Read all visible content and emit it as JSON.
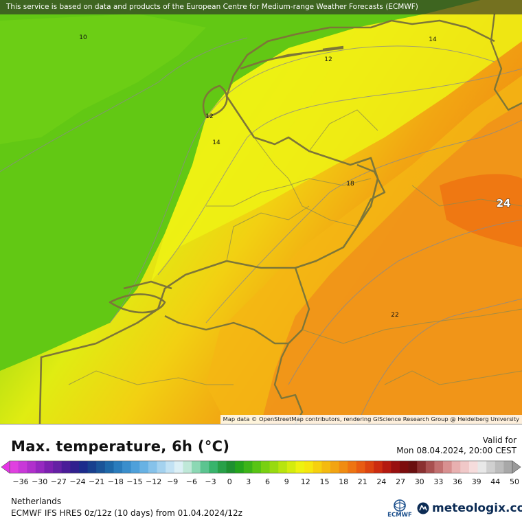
{
  "map": {
    "attribution_top": "This service is based on data and products of the European Centre for Medium-range Weather Forecasts (ECMWF)",
    "attribution_bottom": "Map data © OpenStreetMap contributors, rendering GIScience Research Group @ Heidelberg University",
    "contour_labels": [
      "10",
      "12",
      "12",
      "14",
      "14",
      "18",
      "22"
    ],
    "big_label": "24",
    "colors": {
      "sea_green": "#6fcf14",
      "land_yellow": "#e6ef10",
      "orange": "#f08a10",
      "border": "#807a3a"
    }
  },
  "legend": {
    "title": "Max. temperature, 6h (°C)",
    "valid_label": "Valid for",
    "valid_time": "Mon 08.04.2024, 20:00 CEST",
    "ticks": [
      "-36",
      "-30",
      "-27",
      "-24",
      "-21",
      "-18",
      "-15",
      "-12",
      "-9",
      "-6",
      "-3",
      "0",
      "3",
      "6",
      "9",
      "12",
      "15",
      "18",
      "21",
      "24",
      "27",
      "30",
      "33",
      "36",
      "39",
      "44",
      "50"
    ]
  },
  "footer": {
    "region": "Netherlands",
    "model": "ECMWF IFS HRES 0z/12z (10 days) from 01.04.2024/12z",
    "ecmwf_logo_text": "ECMWF",
    "meteologix_logo_text": "meteologix.com"
  }
}
